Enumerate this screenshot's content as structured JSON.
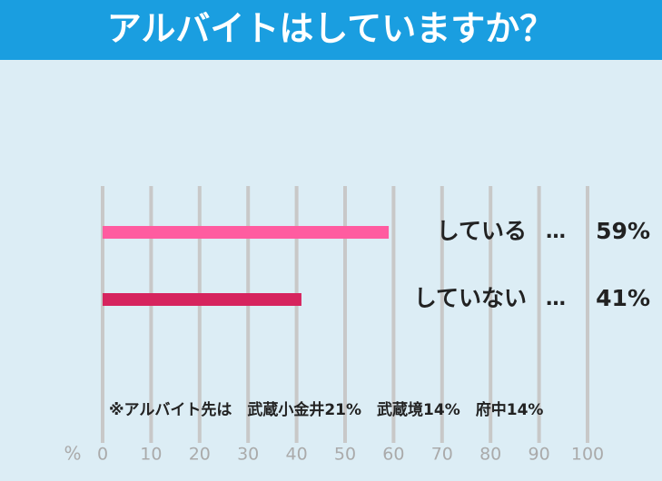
{
  "chart_data": {
    "type": "hbar",
    "title": "アルバイトはしていますか？",
    "categories": [
      "している",
      "していない"
    ],
    "values": [
      59,
      41
    ],
    "value_labels": [
      "59%",
      "41%"
    ],
    "label_separator": "…",
    "colors": [
      "#ff5ca0",
      "#d6245e"
    ],
    "xlabel": "%",
    "xlim": [
      0,
      100
    ],
    "xticks": [
      0,
      10,
      20,
      30,
      40,
      50,
      60,
      70,
      80,
      90,
      100
    ],
    "grid": true,
    "note": "※アルバイト先は　武蔵小金井21%　武蔵境14%　府中14%"
  }
}
